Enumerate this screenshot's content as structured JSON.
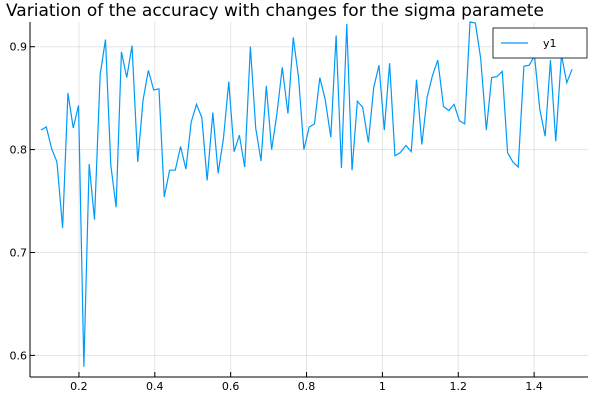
{
  "chart_data": {
    "type": "line",
    "title": "Variation of the accuracy with changes for the sigma paramete",
    "x": [
      0.1,
      0.114,
      0.128,
      0.142,
      0.157,
      0.171,
      0.185,
      0.199,
      0.213,
      0.227,
      0.241,
      0.256,
      0.27,
      0.284,
      0.298,
      0.312,
      0.326,
      0.34,
      0.355,
      0.369,
      0.383,
      0.397,
      0.411,
      0.425,
      0.439,
      0.454,
      0.468,
      0.482,
      0.496,
      0.51,
      0.524,
      0.538,
      0.553,
      0.567,
      0.581,
      0.595,
      0.609,
      0.623,
      0.637,
      0.652,
      0.666,
      0.68,
      0.694,
      0.708,
      0.722,
      0.736,
      0.751,
      0.765,
      0.779,
      0.793,
      0.807,
      0.821,
      0.835,
      0.849,
      0.864,
      0.878,
      0.892,
      0.906,
      0.92,
      0.934,
      0.948,
      0.963,
      0.977,
      0.991,
      1.005,
      1.019,
      1.033,
      1.047,
      1.062,
      1.076,
      1.09,
      1.104,
      1.118,
      1.132,
      1.146,
      1.161,
      1.175,
      1.189,
      1.203,
      1.217,
      1.231,
      1.245,
      1.259,
      1.274,
      1.288,
      1.302,
      1.316,
      1.33,
      1.344,
      1.358,
      1.373,
      1.387,
      1.401,
      1.415,
      1.429,
      1.443,
      1.457,
      1.472,
      1.486,
      1.5
    ],
    "series": [
      {
        "name": "y1",
        "color": "#009af9",
        "values": [
          0.819,
          0.822,
          0.801,
          0.788,
          0.724,
          0.855,
          0.821,
          0.843,
          0.589,
          0.786,
          0.732,
          0.873,
          0.907,
          0.785,
          0.744,
          0.895,
          0.87,
          0.901,
          0.788,
          0.848,
          0.877,
          0.858,
          0.859,
          0.754,
          0.78,
          0.78,
          0.803,
          0.781,
          0.827,
          0.844,
          0.831,
          0.77,
          0.836,
          0.777,
          0.811,
          0.866,
          0.798,
          0.814,
          0.783,
          0.9,
          0.821,
          0.789,
          0.862,
          0.8,
          0.835,
          0.88,
          0.835,
          0.909,
          0.87,
          0.8,
          0.822,
          0.825,
          0.87,
          0.849,
          0.812,
          0.911,
          0.782,
          0.922,
          0.78,
          0.847,
          0.841,
          0.807,
          0.86,
          0.882,
          0.819,
          0.884,
          0.794,
          0.797,
          0.804,
          0.798,
          0.868,
          0.805,
          0.851,
          0.872,
          0.887,
          0.842,
          0.838,
          0.844,
          0.828,
          0.825,
          0.924,
          0.923,
          0.889,
          0.819,
          0.87,
          0.871,
          0.876,
          0.797,
          0.788,
          0.783,
          0.881,
          0.882,
          0.891,
          0.839,
          0.813,
          0.887,
          0.808,
          0.892,
          0.865,
          0.878
        ]
      }
    ],
    "xlim": [
      0.071,
      1.542
    ],
    "ylim": [
      0.579,
      0.924
    ],
    "xticks": [
      0.2,
      0.4,
      0.6,
      0.8,
      1.0,
      1.2,
      1.4
    ],
    "yticks": [
      0.6,
      0.7,
      0.8,
      0.9
    ],
    "grid": true,
    "legend": "top-right"
  }
}
